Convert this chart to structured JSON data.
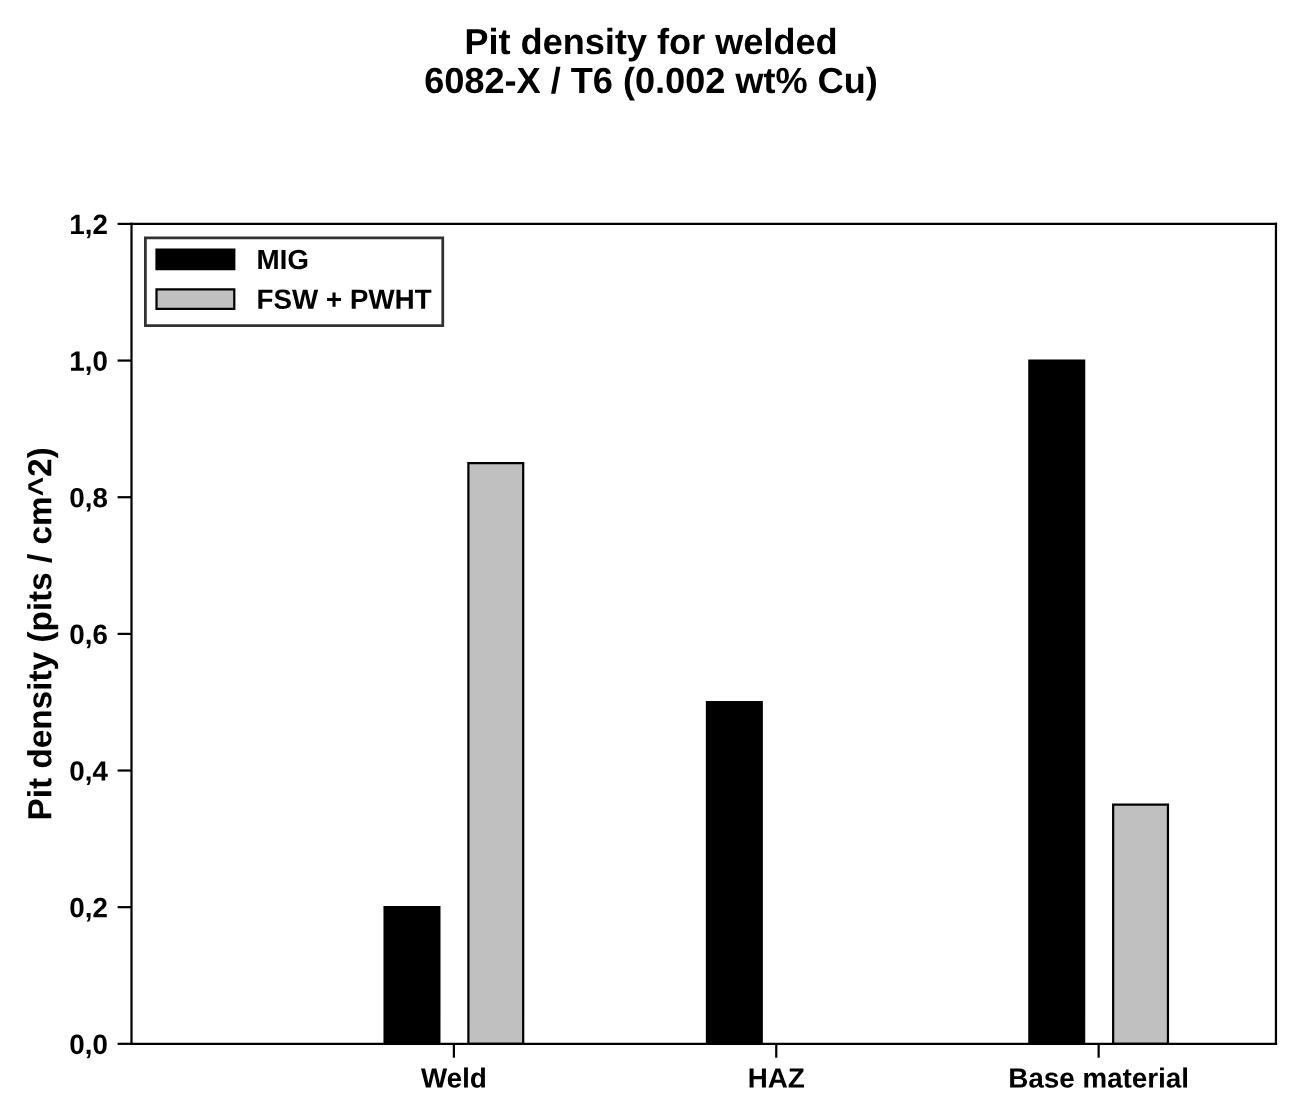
{
  "chart_data": {
    "type": "bar",
    "title": "Pit density for welded\n6082-X / T6 (0.002 wt% Cu)",
    "ylabel": "Pit density (pits / cm^2)",
    "categories": [
      "Weld",
      "HAZ",
      "Base material"
    ],
    "series": [
      {
        "name": "MIG",
        "color": "#000000",
        "values": [
          0.2,
          0.5,
          1.0
        ]
      },
      {
        "name": "FSW + PWHT",
        "color": "#c0c0c0",
        "values": [
          0.85,
          null,
          0.35
        ]
      }
    ],
    "ylim": [
      0,
      1.2
    ],
    "yticks": [
      {
        "value": 0,
        "label": "0,0"
      },
      {
        "value": 0.2,
        "label": "0,2"
      },
      {
        "value": 0.4,
        "label": "0,4"
      },
      {
        "value": 0.6,
        "label": "0,6"
      },
      {
        "value": 0.8,
        "label": "0,8"
      },
      {
        "value": 1.0,
        "label": "1,0"
      },
      {
        "value": 1.2,
        "label": "1,2"
      }
    ],
    "legend": "top left",
    "grid": false
  }
}
